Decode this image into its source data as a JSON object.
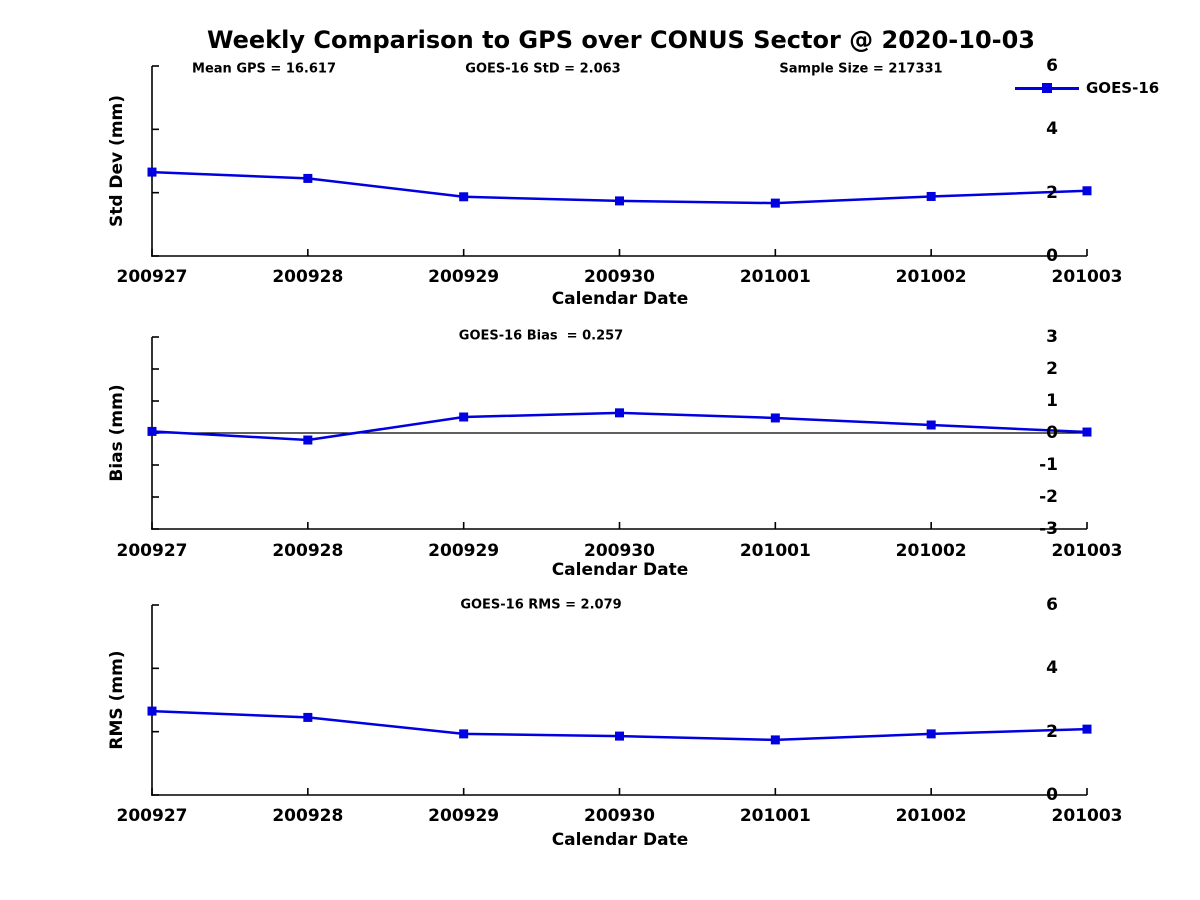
{
  "figure": {
    "title": "Weekly Comparison to GPS over CONUS Sector @ 2020-10-03",
    "colors": {
      "line": "#0000e0",
      "axis": "#000000",
      "text": "#000000",
      "background": "#ffffff"
    },
    "legend": {
      "label": "GOES-16",
      "marker": "filled-square-on-line"
    }
  },
  "chart_data": [
    {
      "id": "std-dev",
      "type": "line",
      "ylabel": "Std Dev (mm)",
      "xlabel": "Calendar Date",
      "ylim": [
        0,
        6
      ],
      "yticks": [
        0,
        2,
        4,
        6
      ],
      "grid": false,
      "legend_position": "top-right",
      "categories": [
        "200927",
        "200928",
        "200929",
        "200930",
        "201001",
        "201002",
        "201003"
      ],
      "series": [
        {
          "name": "GOES-16",
          "values": [
            2.65,
            2.45,
            1.87,
            1.74,
            1.67,
            1.88,
            2.06
          ]
        }
      ],
      "annotations": [
        "Mean GPS = 16.617",
        "GOES-16 StD = 2.063",
        "Sample Size = 217331"
      ]
    },
    {
      "id": "bias",
      "type": "line",
      "ylabel": "Bias (mm)",
      "xlabel": "Calendar Date",
      "ylim": [
        -3,
        3
      ],
      "yticks": [
        -3,
        -2,
        -1,
        0,
        1,
        2,
        3
      ],
      "zero_line": true,
      "grid": false,
      "categories": [
        "200927",
        "200928",
        "200929",
        "200930",
        "201001",
        "201002",
        "201003"
      ],
      "series": [
        {
          "name": "GOES-16",
          "values": [
            0.05,
            -0.22,
            0.5,
            0.63,
            0.47,
            0.25,
            0.03
          ]
        }
      ],
      "annotations": [
        "GOES-16 Bias  = 0.257"
      ]
    },
    {
      "id": "rms",
      "type": "line",
      "ylabel": "RMS (mm)",
      "xlabel": "Calendar Date",
      "ylim": [
        0,
        6
      ],
      "yticks": [
        0,
        2,
        4,
        6
      ],
      "grid": false,
      "categories": [
        "200927",
        "200928",
        "200929",
        "200930",
        "201001",
        "201002",
        "201003"
      ],
      "series": [
        {
          "name": "GOES-16",
          "values": [
            2.65,
            2.45,
            1.93,
            1.86,
            1.74,
            1.93,
            2.08
          ]
        }
      ],
      "annotations": [
        "GOES-16 RMS = 2.079"
      ]
    }
  ]
}
